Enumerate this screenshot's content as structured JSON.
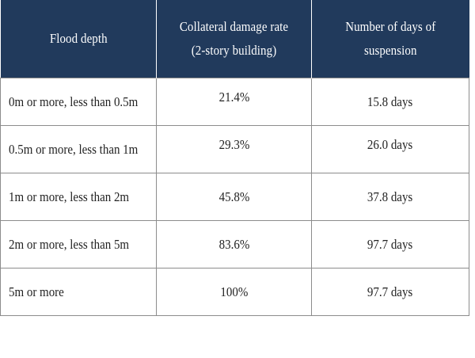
{
  "table": {
    "headers": [
      {
        "line1": "Flood depth",
        "line2": ""
      },
      {
        "line1": "Collateral damage rate",
        "line2": "(2-story building)"
      },
      {
        "line1": "Number of days of",
        "line2": "suspension"
      }
    ],
    "rows": [
      {
        "depth": "0m or more, less than 0.5m",
        "rate": "21.4%",
        "days": "15.8 days"
      },
      {
        "depth": "0.5m or more, less than 1m",
        "rate": "29.3%",
        "days": "26.0 days"
      },
      {
        "depth": "1m or more, less than 2m",
        "rate": "45.8%",
        "days": "37.8 days"
      },
      {
        "depth": "2m or more, less than 5m",
        "rate": "83.6%",
        "days": "97.7 days"
      },
      {
        "depth": "5m or more",
        "rate": "100%",
        "days": "97.7 days"
      }
    ]
  },
  "colors": {
    "header_bg": "#213a5c",
    "header_text": "#ffffff",
    "border": "#8c8c8c"
  }
}
